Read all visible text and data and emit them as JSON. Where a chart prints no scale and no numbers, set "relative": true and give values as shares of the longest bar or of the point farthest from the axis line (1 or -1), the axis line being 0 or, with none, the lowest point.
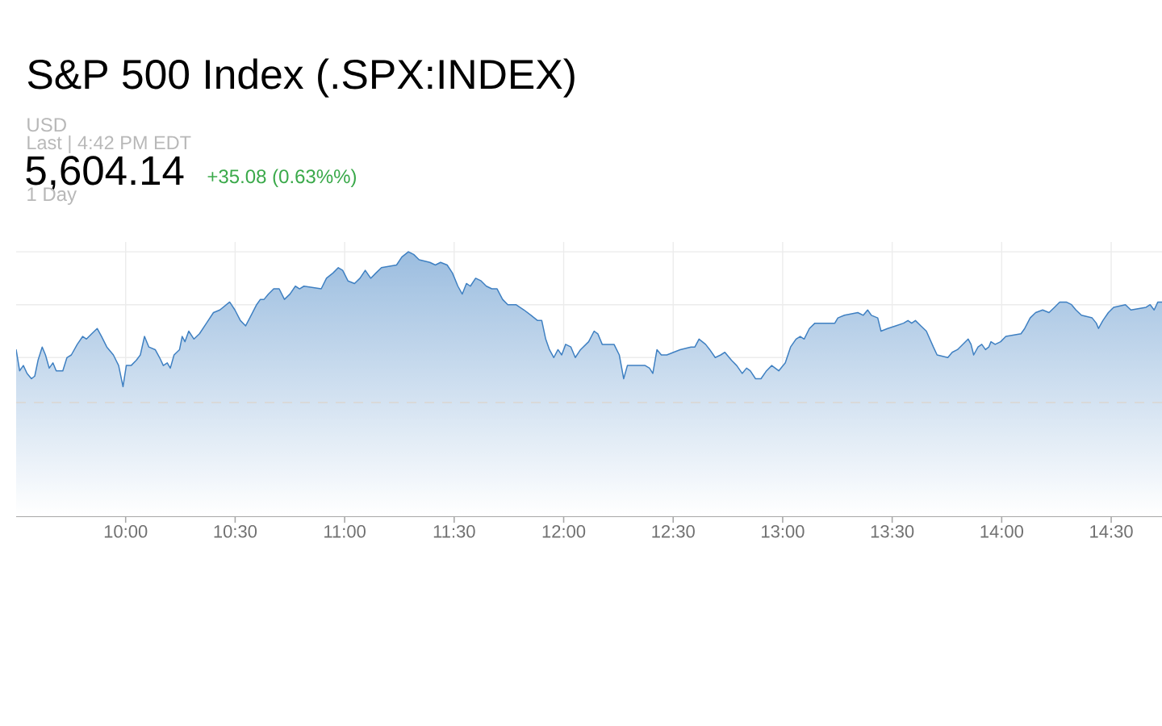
{
  "chart_data": {
    "type": "area",
    "title": "S&P 500 Index (.SPX:INDEX)",
    "annotations": [
      "USD",
      "Last | 4:42 PM EDT",
      "5,604.14",
      "+35.08 (0.63%%)",
      "1 Day"
    ],
    "relative": true,
    "color": "#3f80c2",
    "grid": true,
    "xlim": [
      9.5,
      14.732
    ],
    "xticks": [
      {
        "value": 10,
        "label": "10:00"
      },
      {
        "value": 10.5,
        "label": "10:30"
      },
      {
        "value": 11,
        "label": "11:00"
      },
      {
        "value": 11.5,
        "label": "11:30"
      },
      {
        "value": 12,
        "label": "12:00"
      },
      {
        "value": 12.5,
        "label": "12:30"
      },
      {
        "value": 13,
        "label": "13:00"
      },
      {
        "value": 13.5,
        "label": "13:30"
      },
      {
        "value": 14,
        "label": "14:00"
      },
      {
        "value": 14.5,
        "label": "14:30"
      }
    ],
    "ref_lines": [
      {
        "axis": "y",
        "value": 0.43,
        "color": "#d9d9d9",
        "line_style": "dashed"
      }
    ],
    "x": [
      9.5,
      9.516,
      9.533,
      9.55,
      9.57,
      9.585,
      9.6,
      9.619,
      9.634,
      9.651,
      9.668,
      9.683,
      9.713,
      9.732,
      9.752,
      9.779,
      9.804,
      9.821,
      9.845,
      9.87,
      9.89,
      9.914,
      9.944,
      9.968,
      9.988,
      10.003,
      10.025,
      10.049,
      10.067,
      10.086,
      10.106,
      10.135,
      10.155,
      10.172,
      10.19,
      10.204,
      10.221,
      10.246,
      10.258,
      10.271,
      10.288,
      10.312,
      10.337,
      10.369,
      10.401,
      10.43,
      10.475,
      10.499,
      10.524,
      10.548,
      10.573,
      10.598,
      10.615,
      10.632,
      10.652,
      10.676,
      10.701,
      10.725,
      10.75,
      10.775,
      10.794,
      10.814,
      10.893,
      10.917,
      10.947,
      10.971,
      10.991,
      11.015,
      11.045,
      11.07,
      11.094,
      11.119,
      11.143,
      11.168,
      11.237,
      11.261,
      11.291,
      11.315,
      11.34,
      11.389,
      11.414,
      11.438,
      11.468,
      11.492,
      11.517,
      11.537,
      11.556,
      11.574,
      11.598,
      11.623,
      11.647,
      11.672,
      11.696,
      11.721,
      11.745,
      11.782,
      11.819,
      11.851,
      11.881,
      11.9,
      11.918,
      11.935,
      11.955,
      11.974,
      11.991,
      12.009,
      12.033,
      12.053,
      12.077,
      12.114,
      12.139,
      12.156,
      12.176,
      12.2,
      12.23,
      12.254,
      12.274,
      12.291,
      12.318,
      12.348,
      12.372,
      12.392,
      12.407,
      12.426,
      12.446,
      12.471,
      12.532,
      12.581,
      12.599,
      12.618,
      12.648,
      12.667,
      12.692,
      12.717,
      12.736,
      12.766,
      12.79,
      12.815,
      12.835,
      12.852,
      12.876,
      12.901,
      12.926,
      12.95,
      12.982,
      13.012,
      13.036,
      13.061,
      13.08,
      13.098,
      13.122,
      13.147,
      13.208,
      13.238,
      13.252,
      13.282,
      13.343,
      13.368,
      13.388,
      13.405,
      13.434,
      13.449,
      13.479,
      13.516,
      13.552,
      13.572,
      13.589,
      13.606,
      13.631,
      13.656,
      13.688,
      13.705,
      13.754,
      13.774,
      13.798,
      13.847,
      13.86,
      13.872,
      13.892,
      13.909,
      13.926,
      13.941,
      13.951,
      13.97,
      13.995,
      14.019,
      14.088,
      14.105,
      14.13,
      14.155,
      14.187,
      14.216,
      14.241,
      14.265,
      14.295,
      14.319,
      14.339,
      14.364,
      14.413,
      14.432,
      14.442,
      14.462,
      14.487,
      14.511,
      14.565,
      14.59,
      14.659,
      14.678,
      14.696,
      14.713,
      14.732
    ],
    "values": [
      0.63,
      0.55,
      0.57,
      0.54,
      0.52,
      0.53,
      0.59,
      0.64,
      0.61,
      0.56,
      0.58,
      0.55,
      0.55,
      0.6,
      0.61,
      0.65,
      0.68,
      0.67,
      0.69,
      0.71,
      0.68,
      0.64,
      0.61,
      0.57,
      0.49,
      0.57,
      0.57,
      0.59,
      0.61,
      0.68,
      0.64,
      0.63,
      0.6,
      0.57,
      0.58,
      0.56,
      0.61,
      0.63,
      0.68,
      0.66,
      0.7,
      0.67,
      0.69,
      0.73,
      0.77,
      0.78,
      0.81,
      0.78,
      0.74,
      0.72,
      0.76,
      0.8,
      0.82,
      0.82,
      0.84,
      0.86,
      0.86,
      0.82,
      0.84,
      0.87,
      0.86,
      0.87,
      0.86,
      0.9,
      0.92,
      0.94,
      0.93,
      0.89,
      0.88,
      0.9,
      0.93,
      0.9,
      0.92,
      0.94,
      0.95,
      0.98,
      1.0,
      0.99,
      0.97,
      0.96,
      0.95,
      0.96,
      0.95,
      0.92,
      0.87,
      0.84,
      0.88,
      0.87,
      0.9,
      0.89,
      0.87,
      0.86,
      0.86,
      0.82,
      0.8,
      0.8,
      0.78,
      0.76,
      0.74,
      0.74,
      0.67,
      0.63,
      0.6,
      0.63,
      0.61,
      0.65,
      0.64,
      0.6,
      0.63,
      0.66,
      0.7,
      0.69,
      0.65,
      0.65,
      0.65,
      0.61,
      0.52,
      0.57,
      0.57,
      0.57,
      0.57,
      0.56,
      0.54,
      0.63,
      0.61,
      0.61,
      0.63,
      0.64,
      0.64,
      0.67,
      0.65,
      0.63,
      0.6,
      0.61,
      0.62,
      0.59,
      0.57,
      0.54,
      0.56,
      0.55,
      0.52,
      0.52,
      0.55,
      0.57,
      0.55,
      0.58,
      0.64,
      0.67,
      0.68,
      0.67,
      0.71,
      0.73,
      0.73,
      0.73,
      0.75,
      0.76,
      0.77,
      0.76,
      0.78,
      0.76,
      0.75,
      0.7,
      0.71,
      0.72,
      0.73,
      0.74,
      0.73,
      0.74,
      0.72,
      0.7,
      0.64,
      0.61,
      0.6,
      0.62,
      0.63,
      0.67,
      0.65,
      0.61,
      0.64,
      0.65,
      0.63,
      0.64,
      0.66,
      0.65,
      0.66,
      0.68,
      0.69,
      0.71,
      0.75,
      0.77,
      0.78,
      0.77,
      0.79,
      0.81,
      0.81,
      0.8,
      0.78,
      0.76,
      0.75,
      0.73,
      0.71,
      0.74,
      0.77,
      0.79,
      0.8,
      0.78,
      0.79,
      0.8,
      0.78,
      0.81,
      0.81
    ]
  }
}
